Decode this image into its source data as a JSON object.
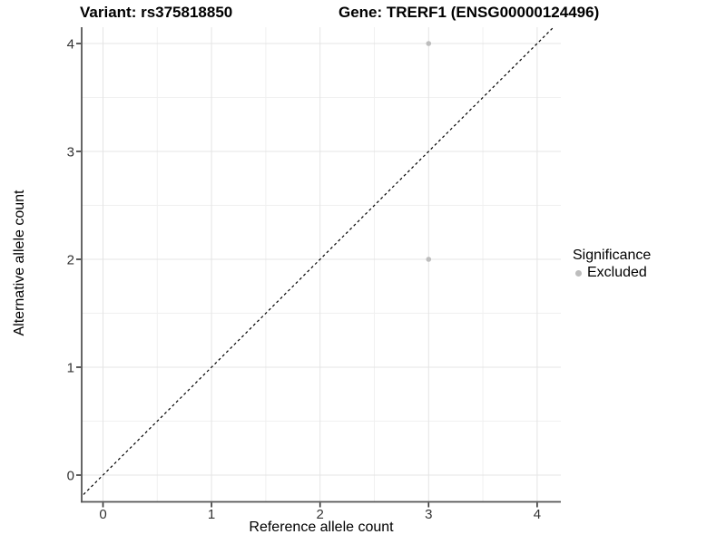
{
  "titles": {
    "variant": "Variant: rs375818850",
    "gene": "Gene: TRERF1 (ENSG00000124496)"
  },
  "chart_data": {
    "type": "scatter",
    "title_left": "Variant: rs375818850",
    "title_right": "Gene: TRERF1 (ENSG00000124496)",
    "xlabel": "Reference allele count",
    "ylabel": "Alternative allele count",
    "x_ticks": [
      0,
      1,
      2,
      3,
      4
    ],
    "y_ticks": [
      0,
      1,
      2,
      3,
      4
    ],
    "xlim": [
      -0.2,
      4.22
    ],
    "ylim": [
      -0.25,
      4.15
    ],
    "grid": "major and minor gridlines, light gray on white",
    "legend_position": "right",
    "series": [
      {
        "name": "Excluded",
        "color": "#bdbdbd",
        "points": [
          {
            "x": 3,
            "y": 4
          },
          {
            "x": 3,
            "y": 2
          }
        ]
      }
    ],
    "reference_line": {
      "type": "abline",
      "slope": 1,
      "intercept": 0,
      "style": "dashed",
      "color": "#000000"
    },
    "legend": {
      "title": "Significance",
      "entries": [
        {
          "label": "Excluded",
          "color": "#bdbdbd",
          "marker": "circle"
        }
      ]
    }
  },
  "colors": {
    "background": "#ffffff",
    "grid_major": "#e4e4e4",
    "grid_minor": "#f0f0f0",
    "axis_line": "#555555",
    "tick_mark": "#333333",
    "tick_label": "#333333",
    "title": "#000000",
    "point": "#bdbdbd"
  }
}
